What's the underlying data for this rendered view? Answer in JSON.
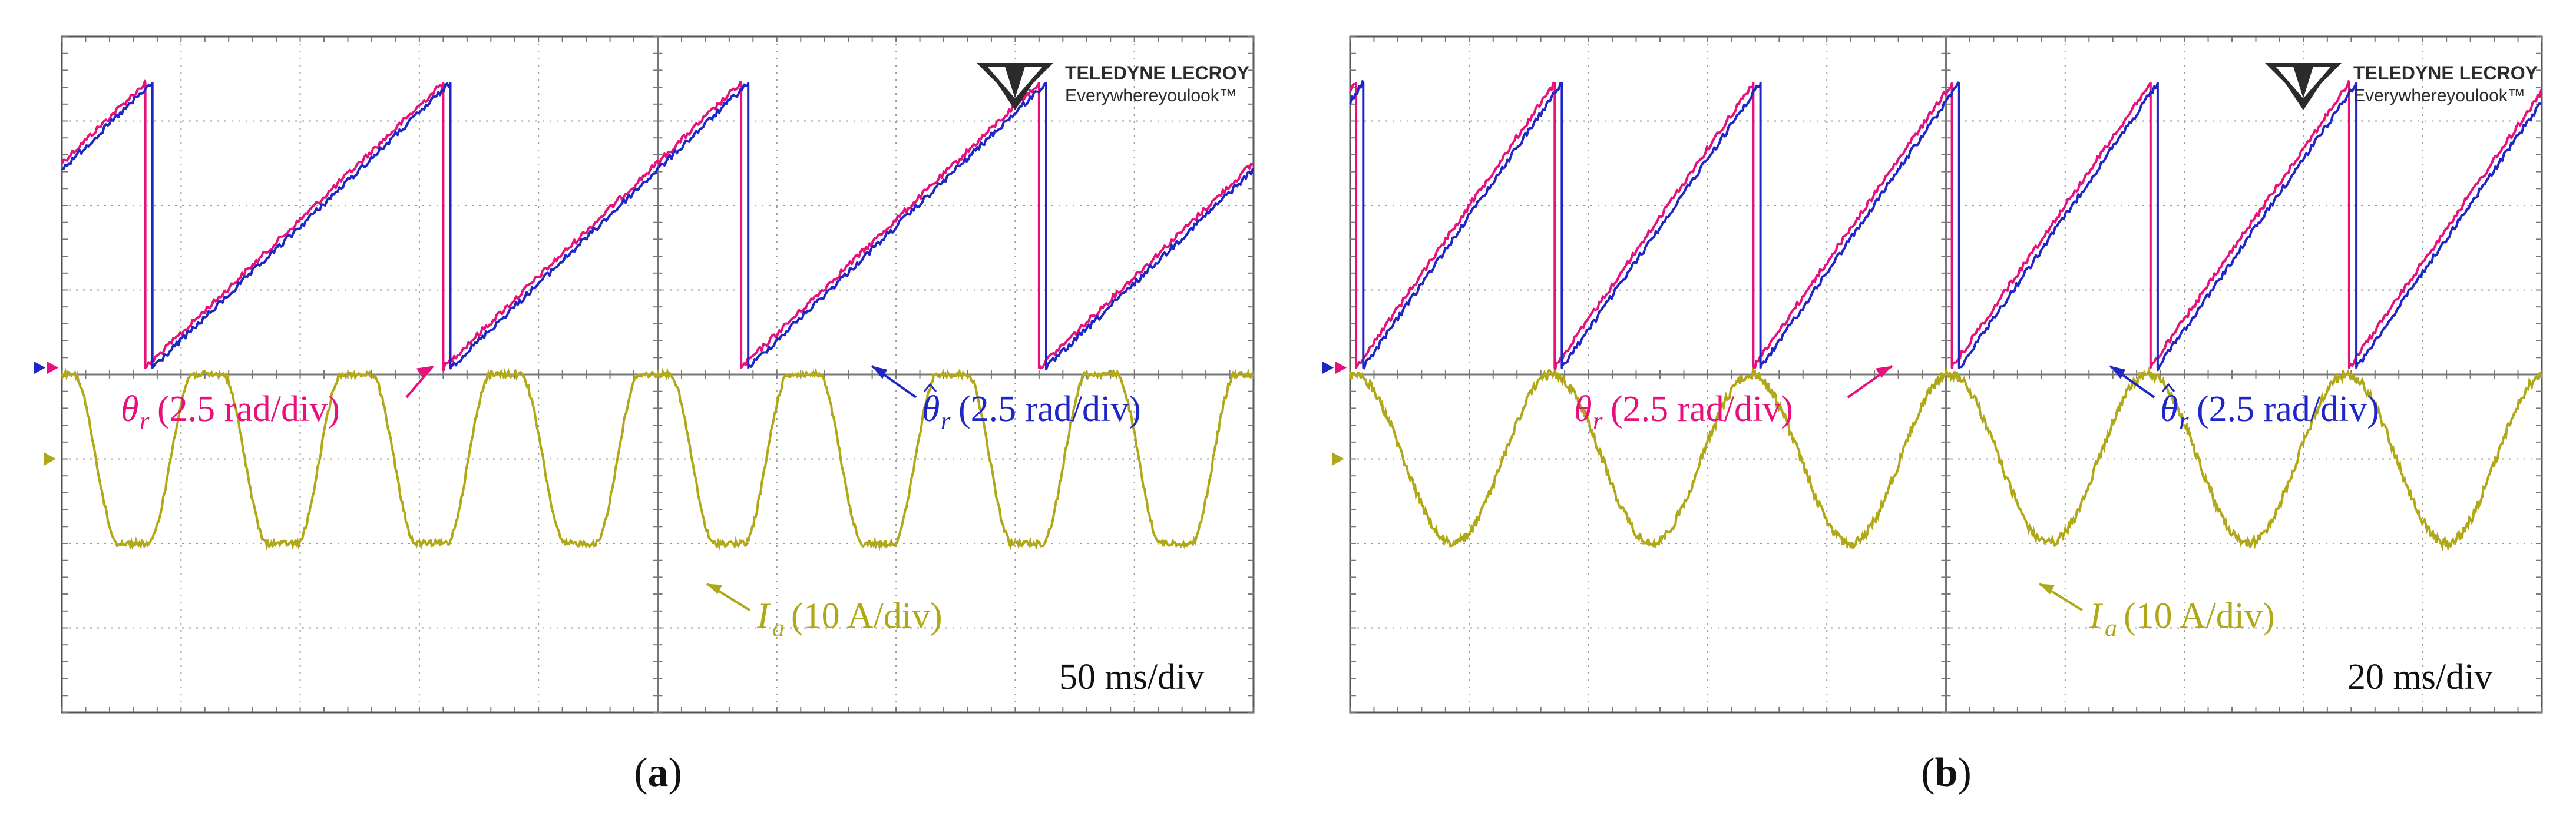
{
  "chart_data": [
    {
      "type": "line",
      "panel_label": "(a)",
      "panel_letter": "a",
      "time_base": "50 ms/div",
      "logo": {
        "brand": "TELEDYNE LECROY",
        "tagline": "Everywhereyoulook™"
      },
      "series": [
        {
          "name": "θr (2.5 rad/div)",
          "symbol": "θ",
          "subscript": "r",
          "scale": "(2.5 rad/div)",
          "color": "#e8107a",
          "waveform": "sawtooth",
          "periods_per_screen": 4,
          "period_offset_div": 0.7
        },
        {
          "name": "θ̂r (2.5 rad/div)",
          "symbol": "θ",
          "subscript": "r",
          "hat": true,
          "scale": "(2.5 rad/div)",
          "color": "#1f26c8",
          "waveform": "sawtooth",
          "periods_per_screen": 4,
          "period_offset_div": 0.7,
          "lag_div": 0.06
        },
        {
          "name": "Ia (10 A/div)",
          "symbol": "I",
          "subscript": "a",
          "scale": "(10 A/div)",
          "color": "#b0a816",
          "waveform": "trapezoid-sine",
          "cycles_per_screen": 8,
          "amplitude_div": 1.0,
          "offset_div": 0.0
        }
      ],
      "grid": {
        "h_divisions": 10,
        "v_divisions": 8,
        "grid_color": "#9a9a9a"
      },
      "channel_markers": {
        "angle": [
          "#1f26c8",
          "#e8107a"
        ],
        "current": [
          "#b0a816"
        ]
      }
    },
    {
      "type": "line",
      "panel_label": "(b)",
      "panel_letter": "b",
      "time_base": "20 ms/div",
      "logo": {
        "brand": "TELEDYNE LECROY",
        "tagline": "Everywhereyoulook™"
      },
      "series": [
        {
          "name": "θr (2.5 rad/div)",
          "symbol": "θ",
          "subscript": "r",
          "scale": "(2.5 rad/div)",
          "color": "#e8107a",
          "waveform": "sawtooth",
          "periods_per_screen": 6,
          "period_offset_div": 0.05
        },
        {
          "name": "θ̂r (2.5 rad/div)",
          "symbol": "θ",
          "subscript": "r",
          "hat": true,
          "scale": "(2.5 rad/div)",
          "color": "#1f26c8",
          "waveform": "sawtooth",
          "periods_per_screen": 6,
          "period_offset_div": 0.05,
          "lag_div": 0.06
        },
        {
          "name": "Ia (10 A/div)",
          "symbol": "I",
          "subscript": "a",
          "scale": "(10 A/div)",
          "color": "#b0a816",
          "waveform": "sine",
          "cycles_per_screen": 6,
          "amplitude_div": 1.0,
          "offset_div": 0.0
        }
      ],
      "grid": {
        "h_divisions": 10,
        "v_divisions": 8,
        "grid_color": "#9a9a9a"
      },
      "channel_markers": {
        "angle": [
          "#1f26c8",
          "#e8107a"
        ],
        "current": [
          "#b0a816"
        ]
      }
    }
  ]
}
